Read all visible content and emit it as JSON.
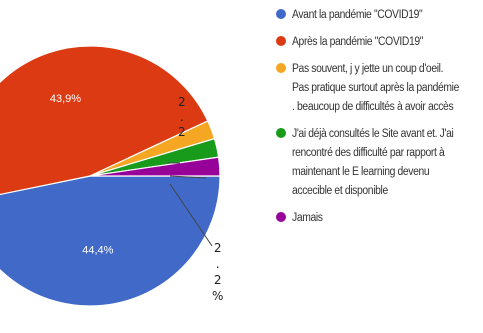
{
  "chart_data": {
    "type": "pie",
    "title": "",
    "slices": [
      {
        "label": "Avant la pandémie \"COVID19\"",
        "value": 44.4,
        "display": "44,4%",
        "color": "#4169c8"
      },
      {
        "label": "Après la pandémie \"COVID19\"",
        "value": 43.9,
        "display": "43,9%",
        "color": "#dc3a12"
      },
      {
        "label": "Pas souvent, j y jette un coup d'oeil. Pas pratique surtout après la pandémie . beaucoup de difficultés à avoir accès",
        "value": 2.2,
        "display": "",
        "color": "#f5a623"
      },
      {
        "label": "J'ai déjà consultés le Site avant et. J'ai rencontré des difficulté par rapport à maintenant le E learning devenu accecible et disponible",
        "value": 2.2,
        "display": "",
        "color": "#189a1b"
      },
      {
        "label": "Jamais",
        "value": 2.2,
        "display": "",
        "color": "#98009a"
      }
    ],
    "legend_position": "right"
  },
  "callouts": {
    "top": {
      "lines": [
        "2",
        ".",
        "2"
      ]
    },
    "bottom": {
      "lines": [
        "2",
        ".",
        "2",
        "%"
      ]
    }
  }
}
